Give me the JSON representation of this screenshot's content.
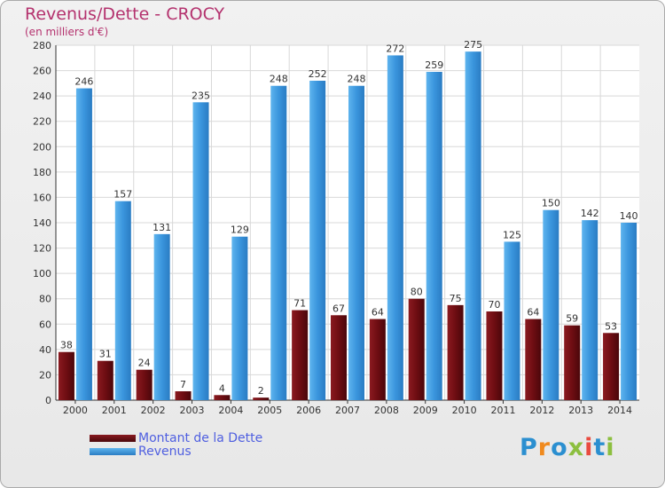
{
  "title": "Revenus/Dette - CROCY",
  "subtitle": "(en milliers d'€)",
  "colors": {
    "dette": "#6e0d12",
    "revenus": "#3a95dd",
    "title": "#b4326e",
    "legend_text": "#4f5fe0"
  },
  "legend": [
    {
      "label": "Montant de la Dette",
      "color": "#6e0d12"
    },
    {
      "label": "Revenus",
      "color": "#3a95dd"
    }
  ],
  "logo": {
    "text": "Proxiti"
  },
  "chart_data": {
    "type": "bar",
    "categories": [
      "2000",
      "2001",
      "2002",
      "2003",
      "2004",
      "2005",
      "2006",
      "2007",
      "2008",
      "2009",
      "2010",
      "2011",
      "2012",
      "2013",
      "2014"
    ],
    "series": [
      {
        "name": "Montant de la Dette",
        "values": [
          38,
          31,
          24,
          7,
          4,
          2,
          71,
          67,
          64,
          80,
          75,
          70,
          64,
          59,
          53
        ]
      },
      {
        "name": "Revenus",
        "values": [
          246,
          157,
          131,
          235,
          129,
          248,
          252,
          248,
          272,
          259,
          275,
          125,
          150,
          142,
          140
        ]
      }
    ],
    "ylim": [
      0,
      280
    ],
    "yticks": [
      0,
      20,
      40,
      60,
      80,
      100,
      120,
      140,
      160,
      180,
      200,
      220,
      240,
      260,
      280
    ],
    "grid": true,
    "legend_position": "bottom-left"
  }
}
